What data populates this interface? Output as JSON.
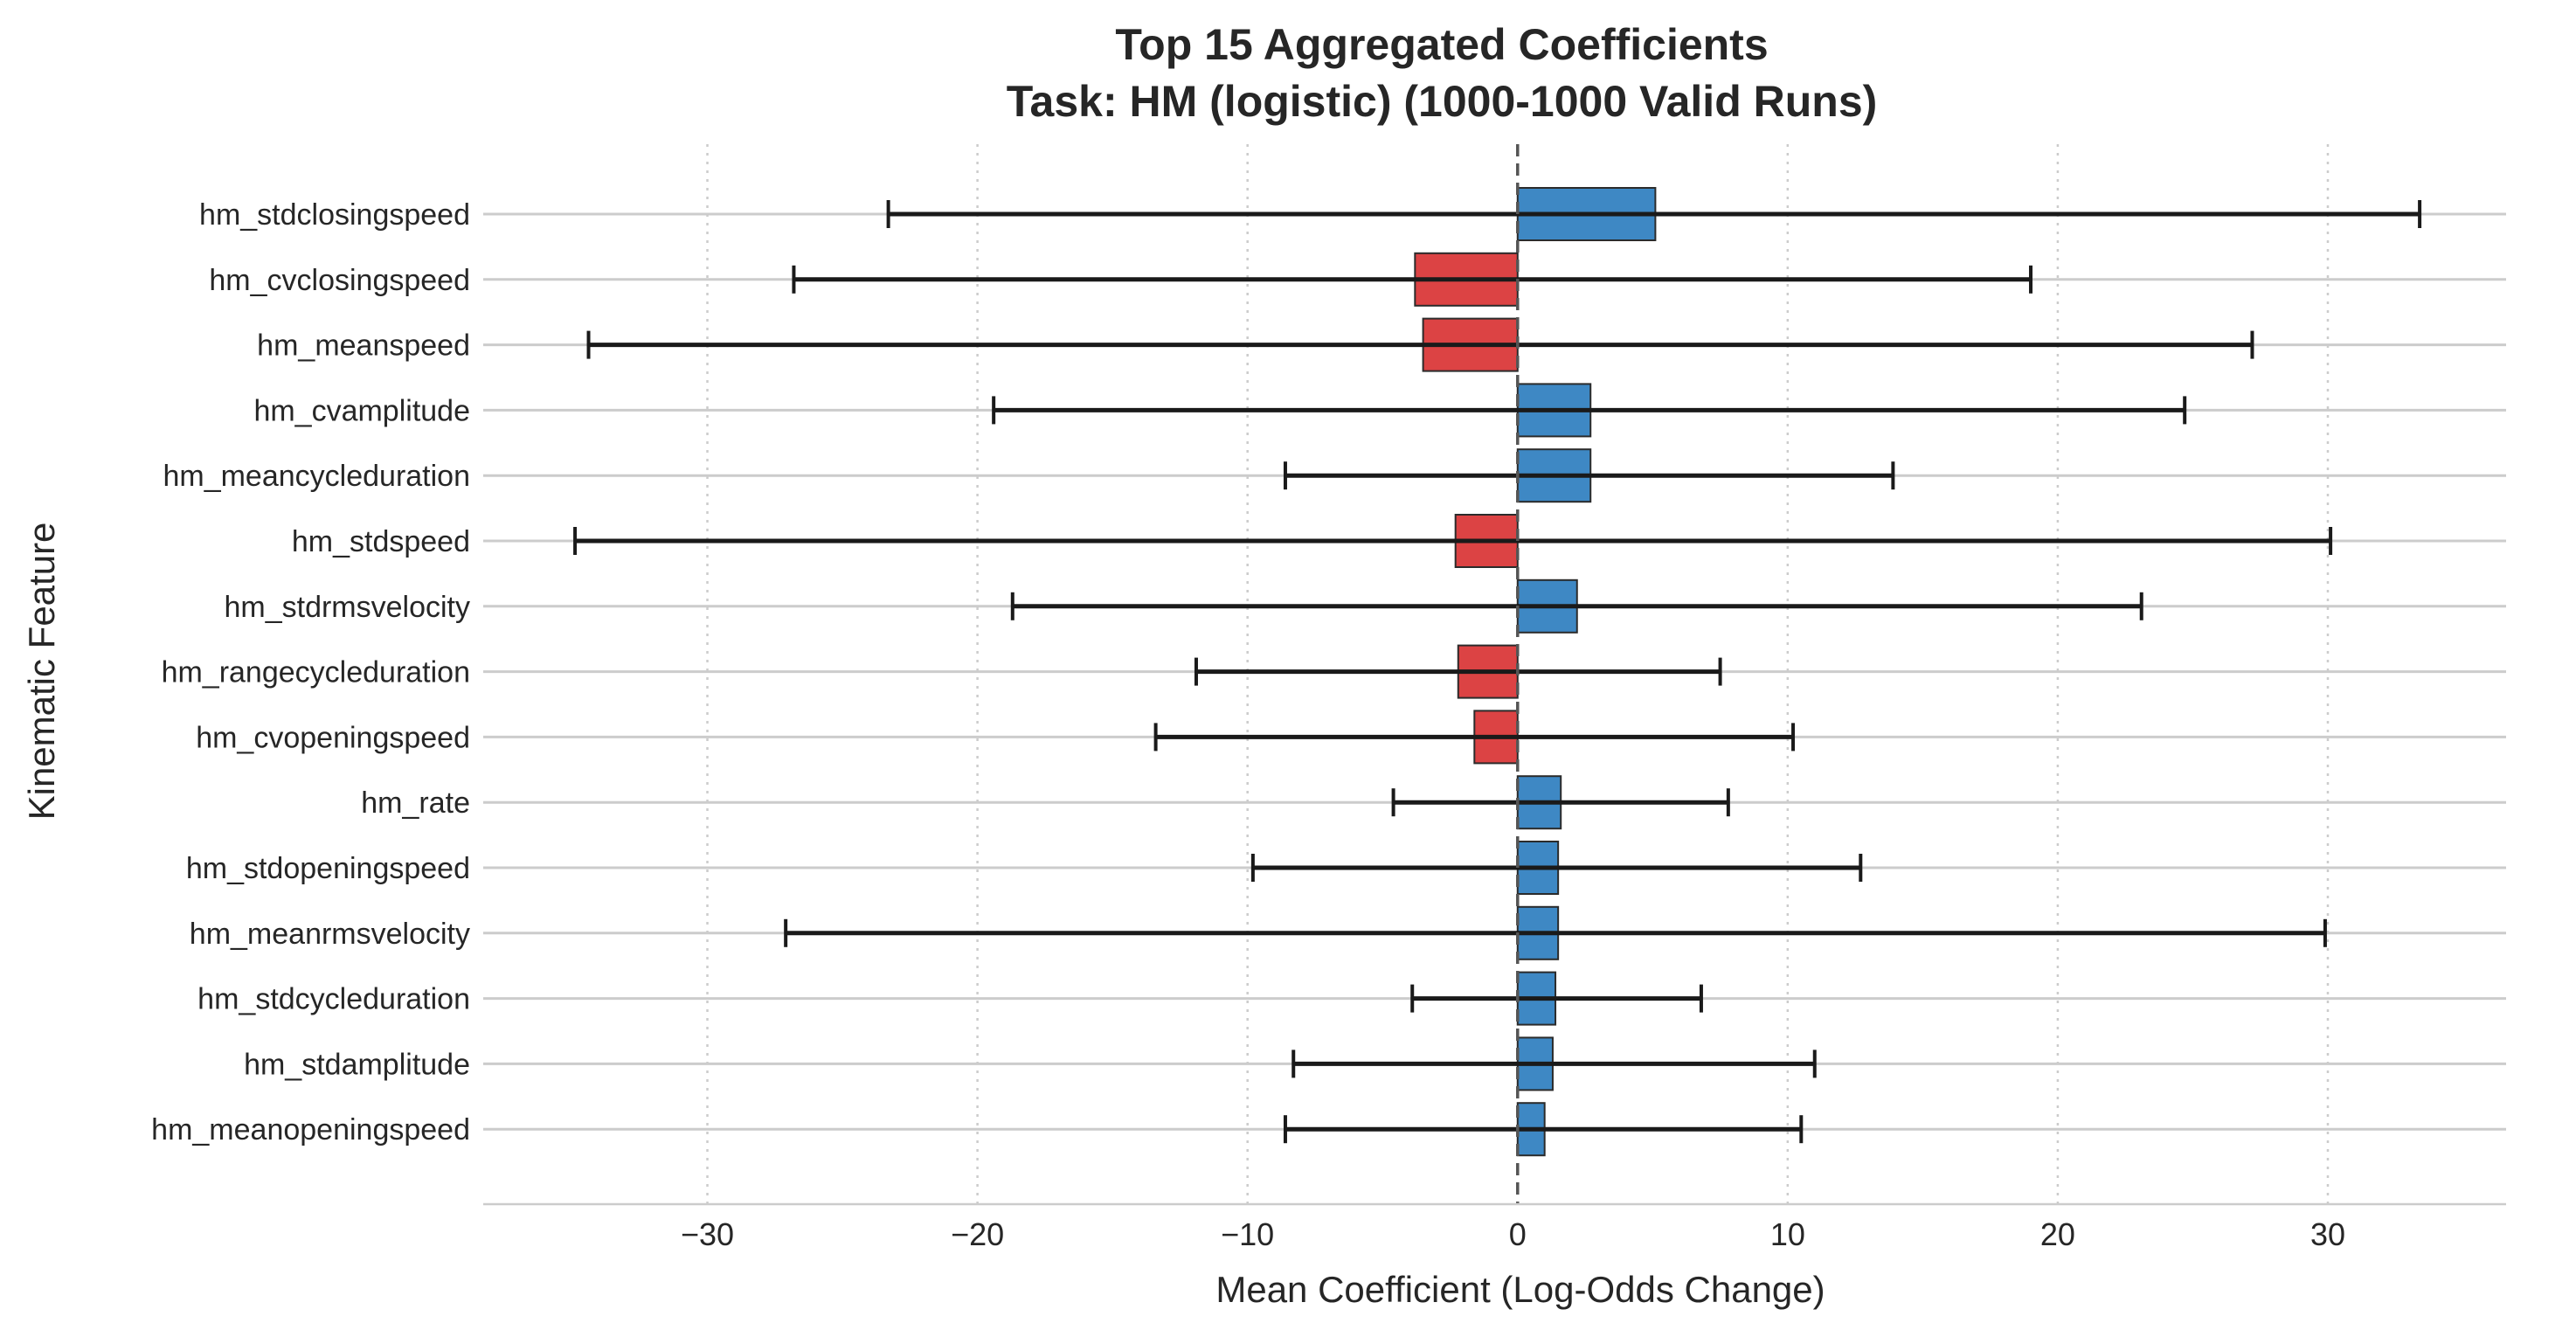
{
  "chart_data": {
    "type": "bar",
    "orientation": "horizontal",
    "title": "Top 15 Aggregated Coefficients",
    "subtitle": "Task: HM (logistic) (1000-1000 Valid Runs)",
    "xlabel": "Mean Coefficient (Log-Odds Change)",
    "ylabel": "Kinematic Feature",
    "xlim": [
      -38.3,
      36.6
    ],
    "xticks": [
      -30,
      -20,
      -10,
      0,
      10,
      20,
      30
    ],
    "xtick_labels": [
      "−30",
      "−20",
      "−10",
      "0",
      "10",
      "20",
      "30"
    ],
    "grid": "vertical dotted, horizontal solid",
    "reference_line": 0,
    "colors": {
      "positive": "#3e88c4",
      "negative": "#dc4344",
      "error_bar": "#1a1a1a",
      "edge": "#2b2b2b"
    },
    "categories": [
      "hm_stdclosingspeed",
      "hm_cvclosingspeed",
      "hm_meanspeed",
      "hm_cvamplitude",
      "hm_meancycleduration",
      "hm_stdspeed",
      "hm_stdrmsvelocity",
      "hm_rangecycleduration",
      "hm_cvopeningspeed",
      "hm_rate",
      "hm_stdopeningspeed",
      "hm_meanrmsvelocity",
      "hm_stdcycleduration",
      "hm_stdamplitude",
      "hm_meanopeningspeed"
    ],
    "values": [
      5.1,
      -3.8,
      -3.5,
      2.7,
      2.7,
      -2.3,
      2.2,
      -2.2,
      -1.6,
      1.6,
      1.5,
      1.5,
      1.4,
      1.3,
      1.0
    ],
    "error_low": [
      -23.3,
      -26.8,
      -34.4,
      -19.4,
      -8.6,
      -34.9,
      -18.7,
      -11.9,
      -13.4,
      -4.6,
      -9.8,
      -27.1,
      -3.9,
      -8.3,
      -8.6
    ],
    "error_high": [
      33.4,
      19.0,
      27.2,
      24.7,
      13.9,
      30.1,
      23.1,
      7.5,
      10.2,
      7.8,
      12.7,
      29.9,
      6.8,
      11.0,
      10.5
    ]
  }
}
